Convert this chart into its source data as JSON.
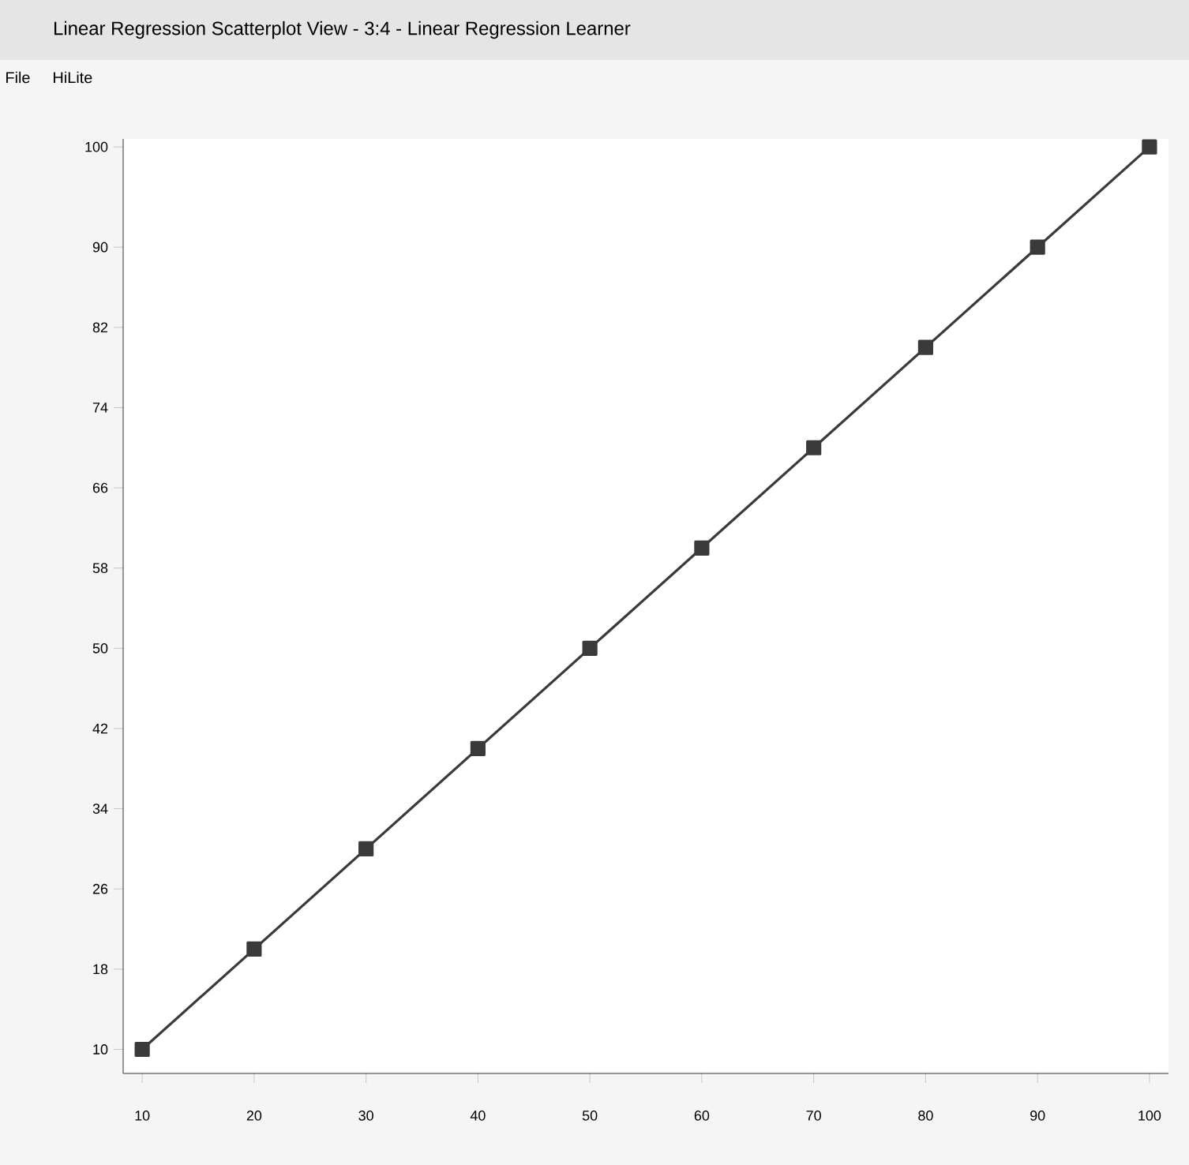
{
  "chart_data": {
    "type": "line",
    "title": "Linear Regression Scatterplot View - 3:4 - Linear Regression Learner",
    "annotations": [
      "File",
      "HiLite"
    ],
    "x": [
      10,
      20,
      30,
      40,
      50,
      60,
      70,
      80,
      90,
      100
    ],
    "series": [
      {
        "color": "#3a3a3a",
        "values": [
          10,
          20,
          30,
          40,
          50,
          60,
          70,
          80,
          90,
          100
        ]
      }
    ],
    "xlim": [
      8.3,
      101.7
    ],
    "ylim": [
      7.6,
      100.8
    ],
    "xticks": [
      10,
      20,
      30,
      40,
      50,
      60,
      70,
      80,
      90,
      100
    ],
    "yticks": [
      10,
      18,
      26,
      34,
      42,
      50,
      58,
      66,
      74,
      82,
      90,
      100
    ],
    "marker": "square",
    "line_style": "solid",
    "grid": false
  }
}
